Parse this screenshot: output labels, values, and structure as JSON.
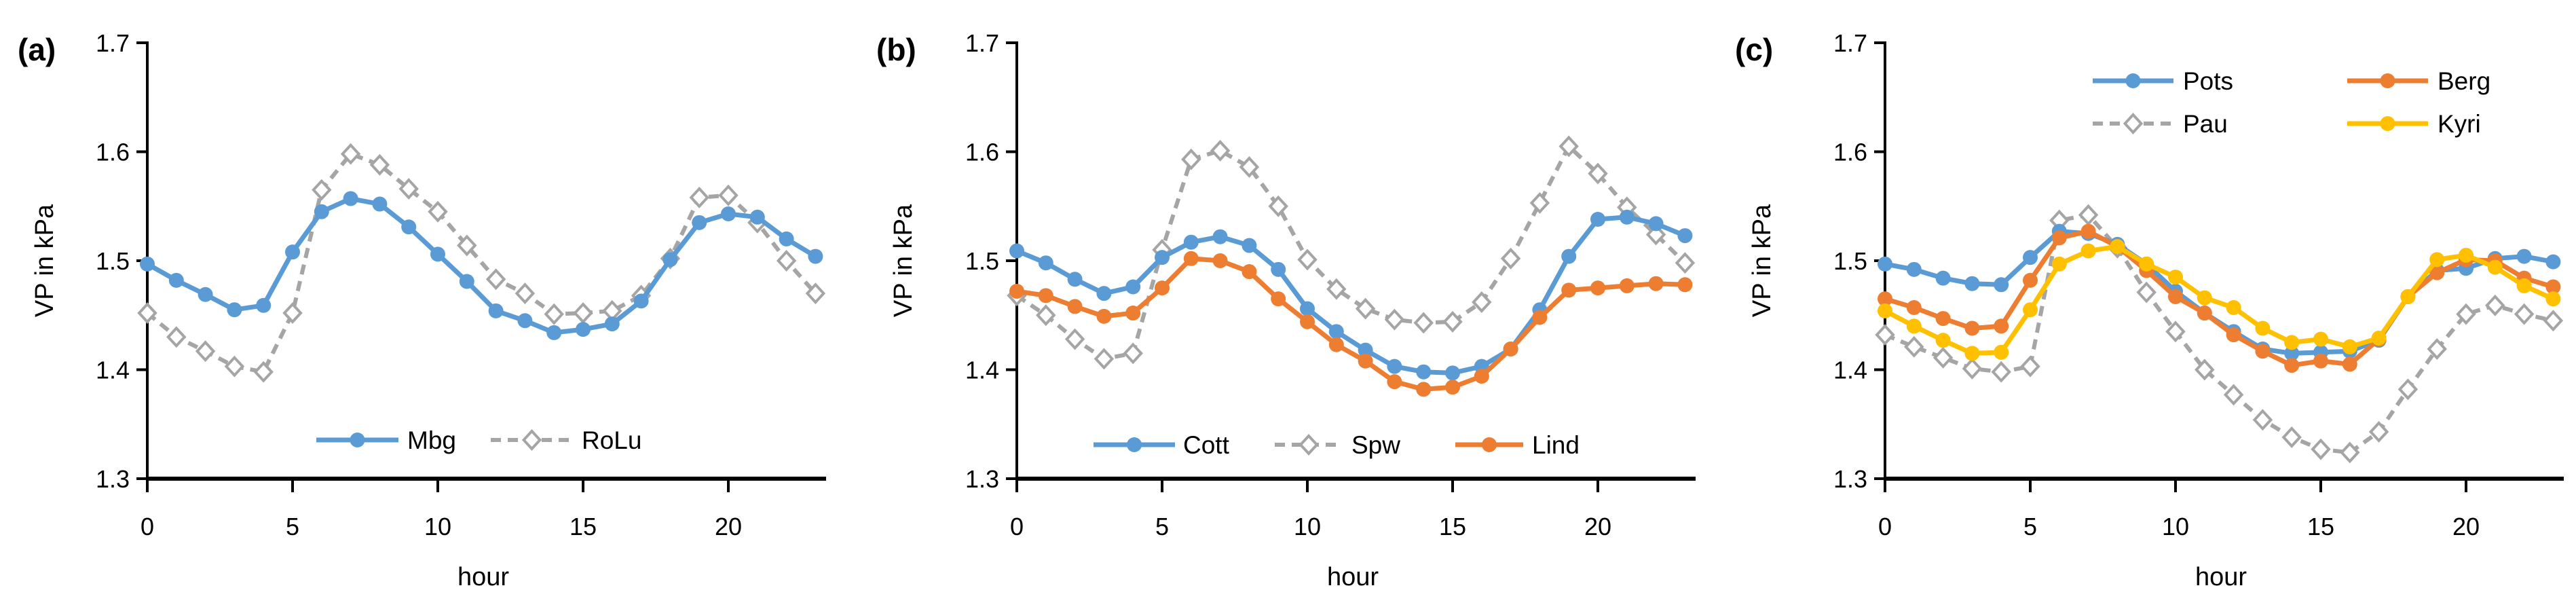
{
  "figure": {
    "ylabel": "VP in kPa",
    "xlabel": "hour",
    "y_tick_labels": [
      "1.3",
      "1.4",
      "1.5",
      "1.6",
      "1.7"
    ],
    "x_tick_labels": [
      "0",
      "5",
      "10",
      "15",
      "20"
    ],
    "colors": {
      "blue": "#5B9BD5",
      "orange": "#ED7D31",
      "gray": "#A5A5A5",
      "yellow": "#FFC000",
      "axis": "#000000",
      "text": "#000000",
      "background": "#FFFFFF"
    }
  },
  "chart_data": [
    {
      "type": "line",
      "panel_label": "(a)",
      "xlabel": "hour",
      "ylabel": "VP in kPa",
      "x": [
        0,
        1,
        2,
        3,
        4,
        5,
        6,
        7,
        8,
        9,
        10,
        11,
        12,
        13,
        14,
        15,
        16,
        17,
        18,
        19,
        20,
        21,
        22,
        23
      ],
      "xlim": [
        0,
        23
      ],
      "ylim": [
        1.3,
        1.7
      ],
      "grid": false,
      "legend_position": "inside-bottom-center",
      "legend_items": [
        "Mbg",
        "RoLu"
      ],
      "series": [
        {
          "name": "RoLu",
          "color": "#A5A5A5",
          "line_style": "dashed",
          "marker": "diamond-open",
          "values": [
            1.452,
            1.43,
            1.417,
            1.403,
            1.398,
            1.452,
            1.565,
            1.598,
            1.588,
            1.566,
            1.545,
            1.514,
            1.483,
            1.47,
            1.451,
            1.452,
            1.454,
            1.468,
            1.502,
            1.558,
            1.56,
            1.535,
            1.5,
            1.47
          ]
        },
        {
          "name": "Mbg",
          "color": "#5B9BD5",
          "line_style": "solid",
          "marker": "circle",
          "values": [
            1.497,
            1.482,
            1.469,
            1.455,
            1.459,
            1.508,
            1.545,
            1.557,
            1.552,
            1.531,
            1.506,
            1.481,
            1.454,
            1.445,
            1.434,
            1.437,
            1.442,
            1.463,
            1.501,
            1.535,
            1.543,
            1.54,
            1.52,
            1.504
          ]
        }
      ]
    },
    {
      "type": "line",
      "panel_label": "(b)",
      "xlabel": "hour",
      "ylabel": "VP in kPa",
      "x": [
        0,
        1,
        2,
        3,
        4,
        5,
        6,
        7,
        8,
        9,
        10,
        11,
        12,
        13,
        14,
        15,
        16,
        17,
        18,
        19,
        20,
        21,
        22,
        23
      ],
      "xlim": [
        0,
        23
      ],
      "ylim": [
        1.3,
        1.7
      ],
      "grid": false,
      "legend_position": "inside-bottom-center",
      "legend_items": [
        "Cott",
        "Spw",
        "Lind"
      ],
      "series": [
        {
          "name": "Spw",
          "color": "#A5A5A5",
          "line_style": "dashed",
          "marker": "diamond-open",
          "values": [
            1.468,
            1.45,
            1.428,
            1.41,
            1.415,
            1.51,
            1.593,
            1.601,
            1.586,
            1.55,
            1.501,
            1.474,
            1.456,
            1.446,
            1.443,
            1.444,
            1.462,
            1.502,
            1.553,
            1.605,
            1.58,
            1.549,
            1.524,
            1.498
          ]
        },
        {
          "name": "Cott",
          "color": "#5B9BD5",
          "line_style": "solid",
          "marker": "circle",
          "values": [
            1.509,
            1.498,
            1.483,
            1.47,
            1.476,
            1.503,
            1.517,
            1.522,
            1.514,
            1.492,
            1.456,
            1.435,
            1.418,
            1.403,
            1.398,
            1.397,
            1.403,
            1.419,
            1.455,
            1.504,
            1.538,
            1.54,
            1.534,
            1.523
          ]
        },
        {
          "name": "Lind",
          "color": "#ED7D31",
          "line_style": "solid",
          "marker": "circle",
          "values": [
            1.472,
            1.468,
            1.458,
            1.449,
            1.452,
            1.475,
            1.502,
            1.5,
            1.49,
            1.465,
            1.444,
            1.423,
            1.408,
            1.389,
            1.382,
            1.384,
            1.394,
            1.419,
            1.448,
            1.473,
            1.475,
            1.477,
            1.479,
            1.478
          ]
        }
      ]
    },
    {
      "type": "line",
      "panel_label": "(c)",
      "xlabel": "hour",
      "ylabel": "VP in kPa",
      "x": [
        0,
        1,
        2,
        3,
        4,
        5,
        6,
        7,
        8,
        9,
        10,
        11,
        12,
        13,
        14,
        15,
        16,
        17,
        18,
        19,
        20,
        21,
        22,
        23
      ],
      "xlim": [
        0,
        23
      ],
      "ylim": [
        1.3,
        1.7
      ],
      "grid": false,
      "legend_position": "inside-top-right-grid",
      "legend_items": [
        "Pots",
        "Berg",
        "Pau",
        "Kyri"
      ],
      "series": [
        {
          "name": "Pau",
          "color": "#A5A5A5",
          "line_style": "dashed",
          "marker": "diamond-open",
          "values": [
            1.432,
            1.421,
            1.411,
            1.401,
            1.398,
            1.403,
            1.537,
            1.542,
            1.512,
            1.471,
            1.435,
            1.4,
            1.377,
            1.354,
            1.338,
            1.327,
            1.324,
            1.343,
            1.382,
            1.419,
            1.451,
            1.459,
            1.451,
            1.445
          ]
        },
        {
          "name": "Pots",
          "color": "#5B9BD5",
          "line_style": "solid",
          "marker": "circle",
          "values": [
            1.497,
            1.492,
            1.484,
            1.479,
            1.478,
            1.503,
            1.527,
            1.525,
            1.515,
            1.497,
            1.472,
            1.452,
            1.435,
            1.419,
            1.415,
            1.416,
            1.417,
            1.427,
            1.467,
            1.491,
            1.493,
            1.502,
            1.504,
            1.499
          ]
        },
        {
          "name": "Berg",
          "color": "#ED7D31",
          "line_style": "solid",
          "marker": "circle",
          "values": [
            1.465,
            1.457,
            1.447,
            1.438,
            1.44,
            1.482,
            1.521,
            1.527,
            1.513,
            1.491,
            1.467,
            1.452,
            1.432,
            1.417,
            1.404,
            1.408,
            1.405,
            1.428,
            1.467,
            1.489,
            1.501,
            1.5,
            1.484,
            1.476
          ]
        },
        {
          "name": "Kyri",
          "color": "#FFC000",
          "line_style": "solid",
          "marker": "circle",
          "values": [
            1.454,
            1.44,
            1.427,
            1.415,
            1.416,
            1.455,
            1.497,
            1.509,
            1.513,
            1.497,
            1.485,
            1.466,
            1.457,
            1.438,
            1.425,
            1.428,
            1.421,
            1.429,
            1.467,
            1.501,
            1.505,
            1.494,
            1.477,
            1.465
          ]
        }
      ]
    }
  ]
}
